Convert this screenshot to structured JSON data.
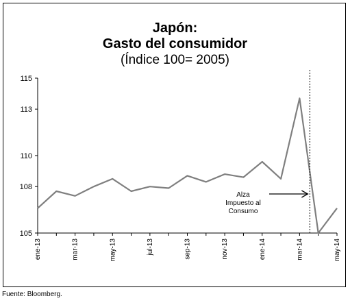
{
  "chart_data": {
    "type": "line",
    "title_line1": "Japón:",
    "title_line2": "Gasto del consumidor",
    "subtitle": "(Índice 100= 2005)",
    "xlabel": "",
    "ylabel": "",
    "x": [
      "ene-13",
      "feb-13",
      "mar-13",
      "abr-13",
      "may-13",
      "jun-13",
      "jul-13",
      "ago-13",
      "sep-13",
      "oct-13",
      "nov-13",
      "dic-13",
      "ene-14",
      "feb-14",
      "mar-14",
      "abr-14",
      "may-14"
    ],
    "x_tick_labels": [
      "ene-13",
      "mar-13",
      "may-13",
      "jul-13",
      "sep-13",
      "nov-13",
      "ene-14",
      "mar-14",
      "may-14"
    ],
    "y_ticks": [
      105,
      108,
      110,
      113,
      115
    ],
    "ylim": [
      105,
      115
    ],
    "series": [
      {
        "values": [
          106.6,
          107.7,
          107.4,
          108.0,
          108.5,
          107.7,
          108.0,
          107.9,
          108.7,
          108.3,
          108.8,
          108.6,
          109.6,
          108.5,
          113.7,
          105.0,
          106.6
        ],
        "color": "#7f7f7f"
      }
    ],
    "vertical_marker": {
      "between": [
        "mar-14",
        "abr-14"
      ],
      "position": 14.55,
      "style": "dotted"
    },
    "annotation": {
      "lines": [
        "Alza",
        "Impuesto al",
        "Consumo"
      ]
    },
    "grid": false,
    "legend": "none"
  },
  "source": "Fuente: Bloomberg."
}
